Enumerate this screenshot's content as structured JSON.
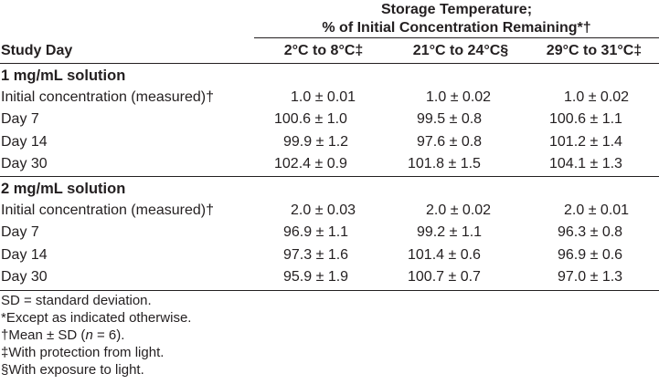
{
  "table": {
    "group_header_line1": "Storage Temperature;",
    "group_header_line2": "% of Initial Concentration Remaining*†",
    "col_study_day": "Study Day",
    "col_temp1": "2°C to 8°C‡",
    "col_temp2": "21°C to 24°C§",
    "col_temp3": "29°C to 31°C‡",
    "sections": [
      {
        "title": "1 mg/mL solution",
        "rows": [
          {
            "label": "Initial concentration (measured)†",
            "v1": "1.0 ± 0.01",
            "v2": "1.0 ± 0.02",
            "v3": "1.0 ± 0.02"
          },
          {
            "label": "Day 7",
            "v1": "100.6 ± 1.0",
            "v2": "99.5 ± 0.8",
            "v3": "100.6 ± 1.1"
          },
          {
            "label": "Day 14",
            "v1": "99.9 ± 1.2",
            "v2": "97.6 ± 0.8",
            "v3": "101.2 ± 1.4"
          },
          {
            "label": "Day 30",
            "v1": "102.4 ± 0.9",
            "v2": "101.8 ± 1.5",
            "v3": "104.1 ± 1.3"
          }
        ]
      },
      {
        "title": "2 mg/mL solution",
        "rows": [
          {
            "label": "Initial concentration (measured)†",
            "v1": "2.0 ± 0.03",
            "v2": "2.0 ± 0.02",
            "v3": "2.0 ± 0.01"
          },
          {
            "label": "Day 7",
            "v1": "96.9 ± 1.1",
            "v2": "99.2 ± 1.1",
            "v3": "96.3 ± 0.8"
          },
          {
            "label": "Day 14",
            "v1": "97.3 ± 1.6",
            "v2": "101.4 ± 0.6",
            "v3": "96.9 ± 0.6"
          },
          {
            "label": "Day 30",
            "v1": "95.9 ± 1.9",
            "v2": "100.7 ± 0.7",
            "v3": "97.0 ± 1.3"
          }
        ]
      }
    ]
  },
  "footnotes": {
    "sd": "SD = standard deviation.",
    "except": "*Except as indicated otherwise.",
    "mean_prefix": "†Mean ± SD (",
    "mean_n": "n",
    "mean_suffix": " = 6).",
    "protection": "‡With protection from light.",
    "exposure": "§With exposure to light."
  }
}
